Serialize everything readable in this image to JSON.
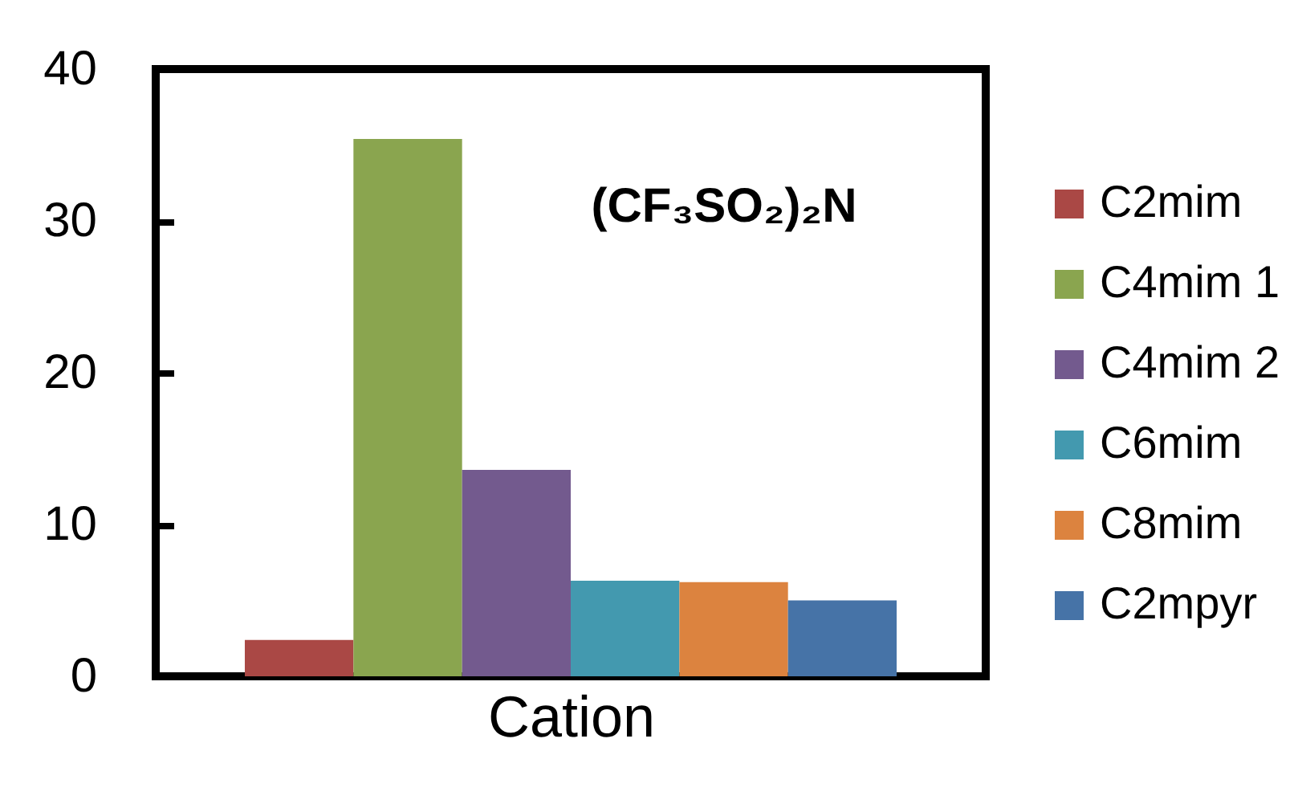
{
  "chart_data": {
    "type": "bar",
    "categories": [
      null
    ],
    "xlabel": "Cation",
    "series": [
      {
        "name": "C2mim",
        "color": "#aa4845",
        "values": [
          2.4
        ]
      },
      {
        "name": "C4mim 1",
        "color": "#8aa54f",
        "values": [
          35.4
        ]
      },
      {
        "name": "C4mim 2",
        "color": "#735a8e",
        "values": [
          13.6
        ]
      },
      {
        "name": "C6mim",
        "color": "#4399af",
        "values": [
          6.3
        ]
      },
      {
        "name": "C8mim",
        "color": "#dc833f",
        "values": [
          6.2
        ]
      },
      {
        "name": "C2mpyr",
        "color": "#4673a7",
        "values": [
          5.0
        ]
      }
    ],
    "ylim": [
      0,
      40
    ],
    "yticks": [
      0,
      10,
      20,
      30,
      40
    ],
    "legend": "right",
    "annotations": [
      "(CF₃SO₂)₂N"
    ]
  }
}
